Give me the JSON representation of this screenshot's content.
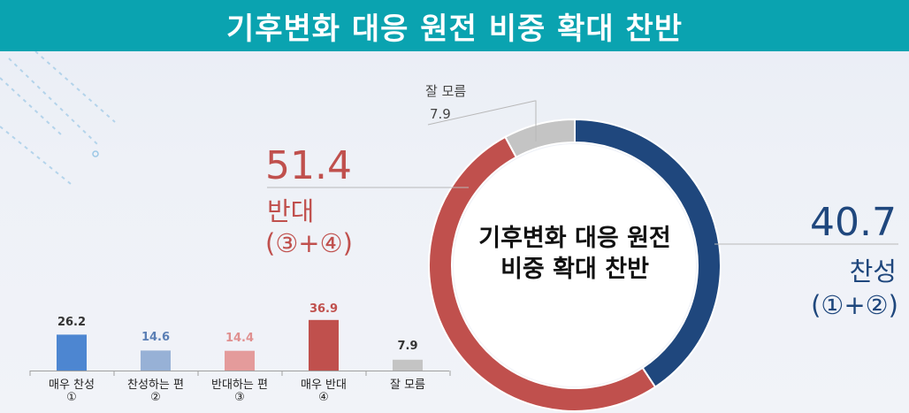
{
  "header": {
    "title": "기후변화 대응 원전 비중 확대 찬반"
  },
  "colors": {
    "header_bg": "#0aa3b0",
    "favor_dark": "#1f477d",
    "oppose_dark": "#c0504d",
    "unknown": "#c4c4c4",
    "favor_light": "#4d86d1",
    "favor_lighter": "#97b1d6",
    "oppose_light": "#e49b9b"
  },
  "chart_data": [
    {
      "type": "pie",
      "title": "기후변화 대응 원전 비중 확대 찬반",
      "slices": [
        {
          "value": 40.7,
          "label": "찬성",
          "sublabel": "(①+②)"
        },
        {
          "value": 51.4,
          "label": "반대",
          "sublabel": "(③+④)"
        },
        {
          "value": 7.9,
          "label": "잘 모름"
        }
      ]
    },
    {
      "type": "bar",
      "categories": [
        "매우 찬성",
        "찬성하는 편",
        "반대하는 편",
        "매우 반대",
        "잘 모름"
      ],
      "category_marks": [
        "①",
        "②",
        "③",
        "④",
        ""
      ],
      "values": [
        26.2,
        14.6,
        14.4,
        36.9,
        7.9
      ],
      "value_labels": [
        "26.2",
        "14.6",
        "14.4",
        "36.9",
        "7.9"
      ]
    }
  ]
}
